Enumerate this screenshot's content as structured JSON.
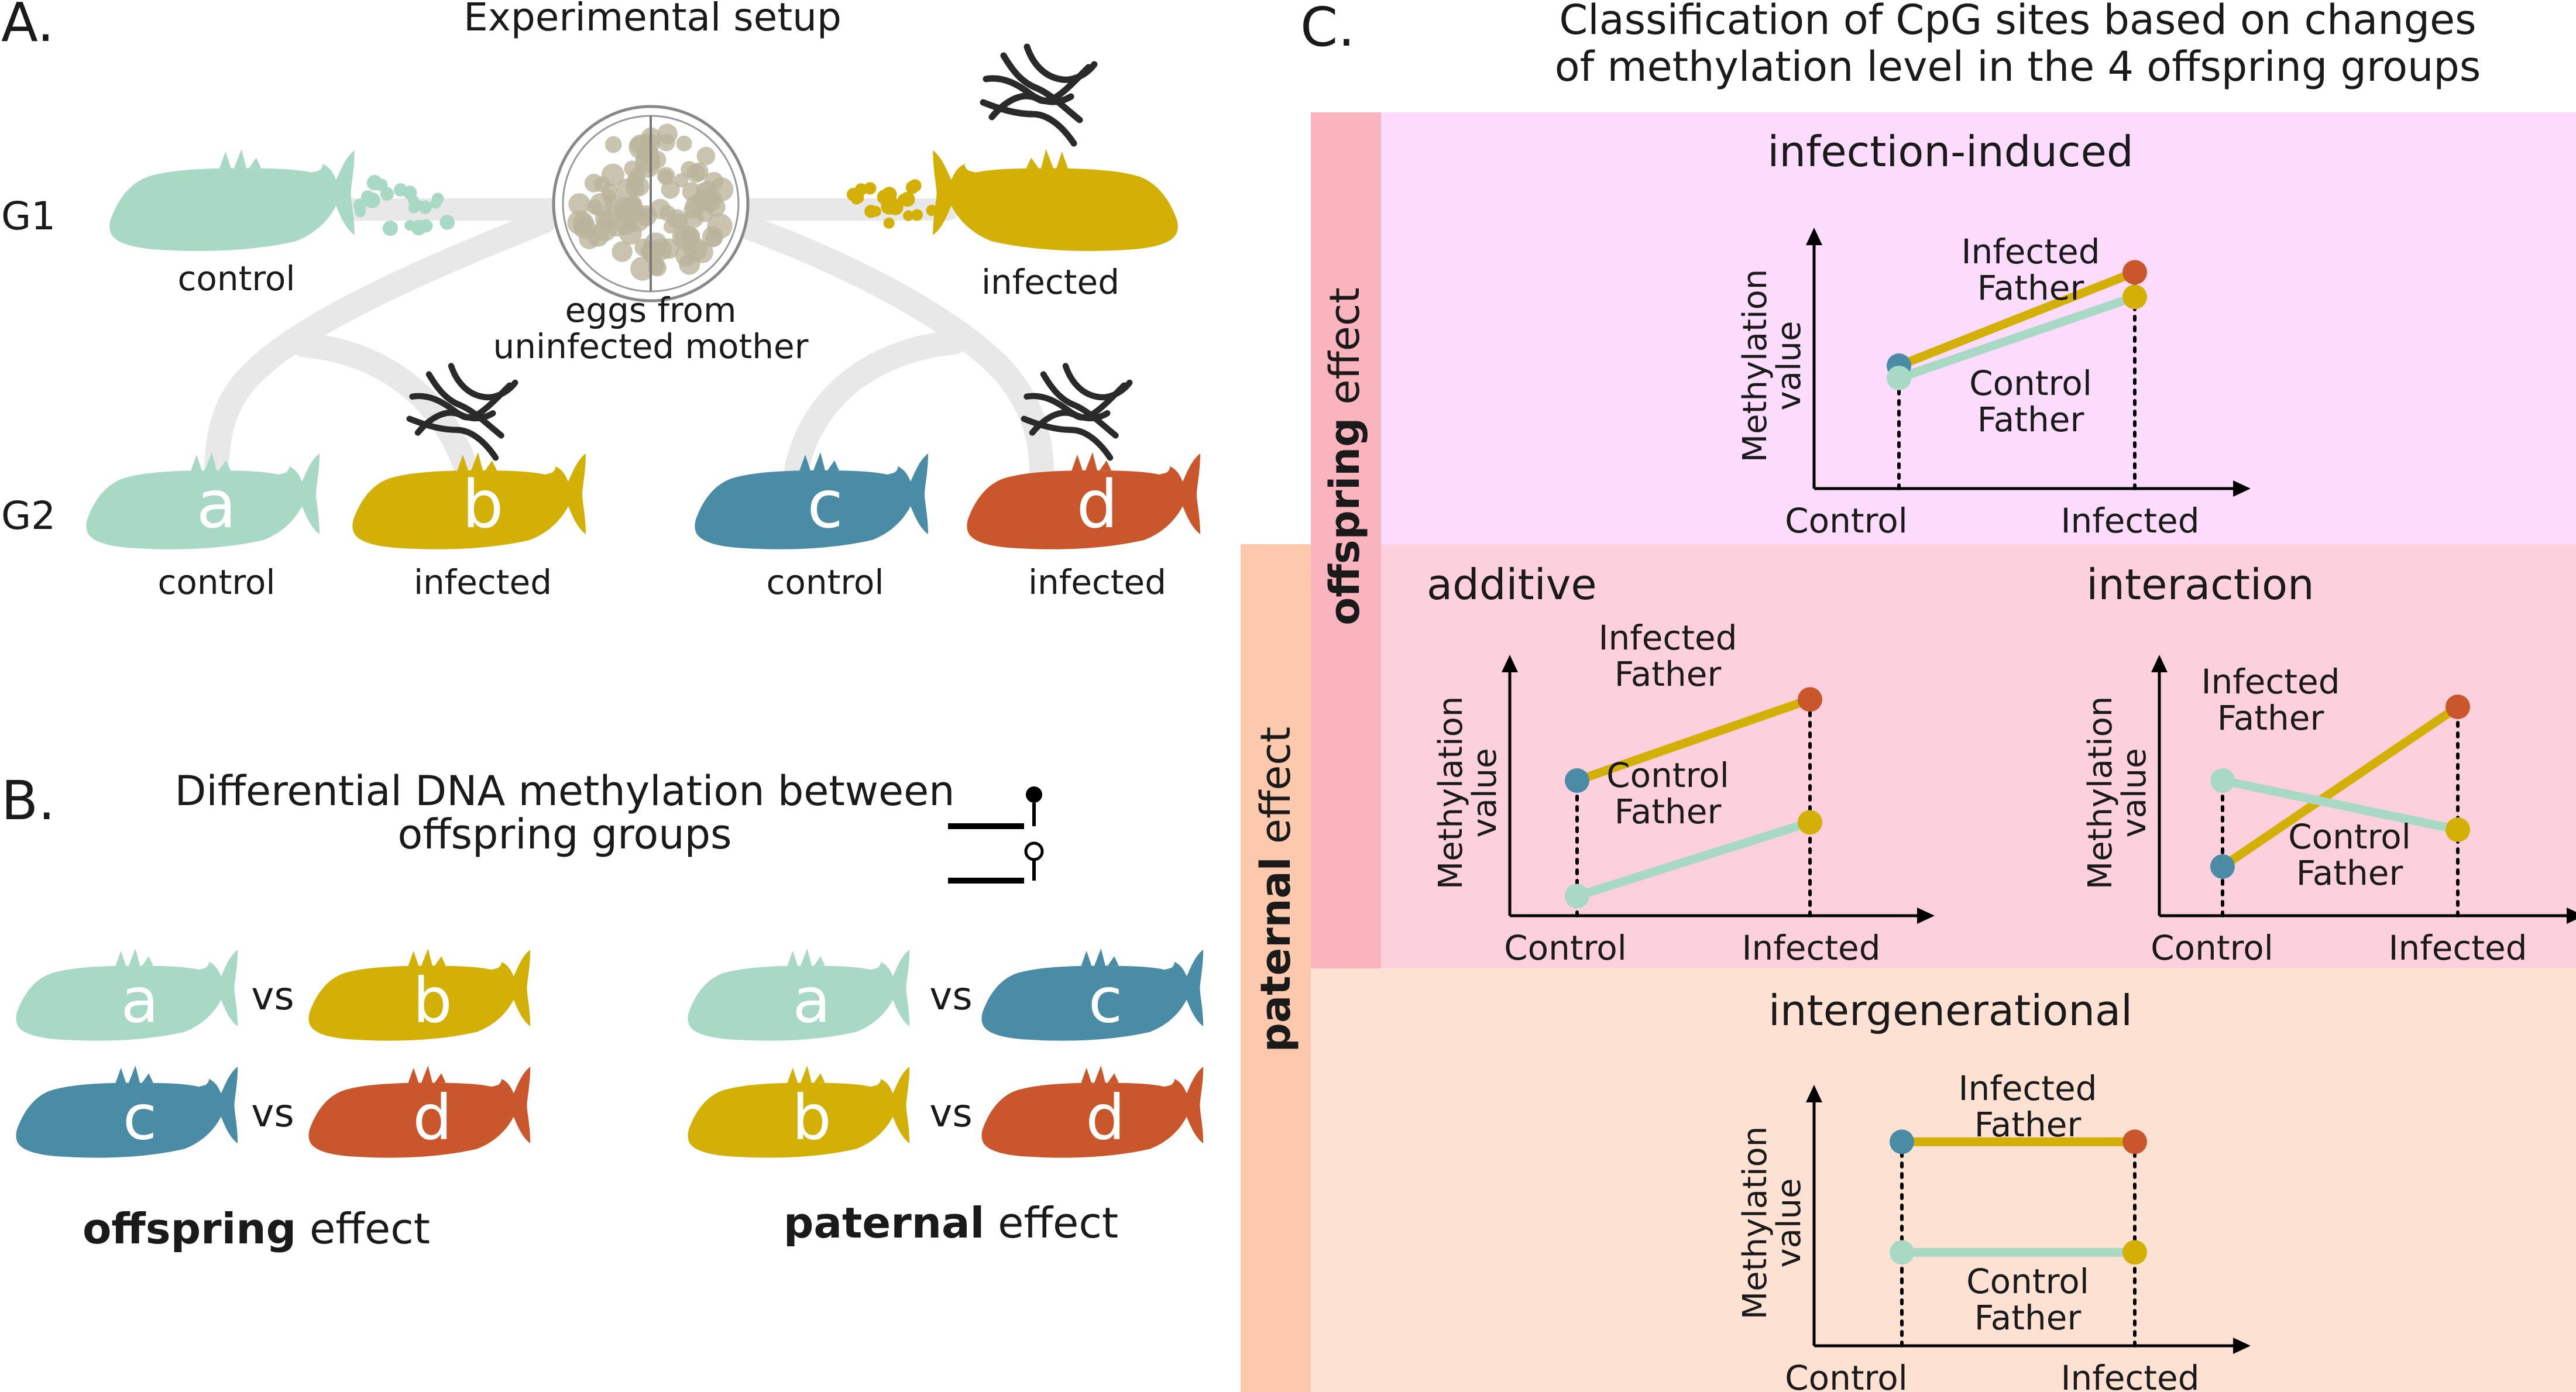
{
  "colors": {
    "control": "#a7d9c4",
    "infected": "#d2b006",
    "control2": "#4a8ba6",
    "infected2": "#c9572b",
    "egg": "#b9b49a",
    "worm": "#2a2a2a",
    "branch": "#e8e8e8",
    "panel_pink": "#fcdcfc",
    "panel_red": "#fcd0dc",
    "panel_peach": "#fde2d4",
    "bar_red": "#f9b4bd",
    "bar_peach": "#fcc9ac"
  },
  "panel_a": {
    "letter": "A.",
    "title": "Experimental setup",
    "g1": "G1",
    "g2": "G2",
    "g1_left_label": "control",
    "g1_right_label": "infected",
    "eggs_line1": "eggs from",
    "eggs_line2": "uninfected mother",
    "fish": [
      {
        "letter": "a",
        "label": "control",
        "color": "control",
        "infected": false
      },
      {
        "letter": "b",
        "label": "infected",
        "color": "infected",
        "infected": true
      },
      {
        "letter": "c",
        "label": "control",
        "color": "control2",
        "infected": false
      },
      {
        "letter": "d",
        "label": "infected",
        "color": "infected2",
        "infected": true
      }
    ]
  },
  "panel_b": {
    "letter": "B.",
    "title_line1": "Differential DNA methylation between",
    "title_line2": "offspring groups",
    "vs": "vs",
    "left_pairs": [
      [
        "a",
        "b"
      ],
      [
        "c",
        "d"
      ]
    ],
    "right_pairs": [
      [
        "a",
        "c"
      ],
      [
        "b",
        "d"
      ]
    ],
    "left_caption_bold": "offspring",
    "left_caption_rest": " effect",
    "right_caption_bold": "paternal",
    "right_caption_rest": " effect"
  },
  "panel_c": {
    "letter": "C.",
    "title_line1": "Classification of CpG sites based on changes",
    "title_line2": "of methylation level in the 4 offspring groups",
    "side_offspring_bold": "offspring",
    "side_offspring_rest": " effect",
    "side_paternal_bold": "paternal",
    "side_paternal_rest": " effect",
    "ylabel_line1": "Methylation",
    "ylabel_line2": "value",
    "x_control": "Control",
    "x_infected": "Infected",
    "infected_father_line1": "Infected",
    "infected_father_line2": "Father",
    "control_father_line1": "Control",
    "control_father_line2": "Father",
    "categories": [
      {
        "id": "infection_induced",
        "title": "infection-induced",
        "control_father": [
          0.45,
          0.78
        ],
        "infected_father": [
          0.5,
          0.88
        ]
      },
      {
        "id": "additive",
        "title": "additive",
        "control_father": [
          0.08,
          0.38
        ],
        "infected_father": [
          0.55,
          0.88
        ]
      },
      {
        "id": "interaction",
        "title": "interaction",
        "control_father": [
          0.55,
          0.35
        ],
        "infected_father": [
          0.2,
          0.85
        ]
      },
      {
        "id": "intergenerational",
        "title": "intergenerational",
        "control_father": [
          0.38,
          0.38
        ],
        "infected_father": [
          0.83,
          0.83
        ]
      }
    ]
  }
}
